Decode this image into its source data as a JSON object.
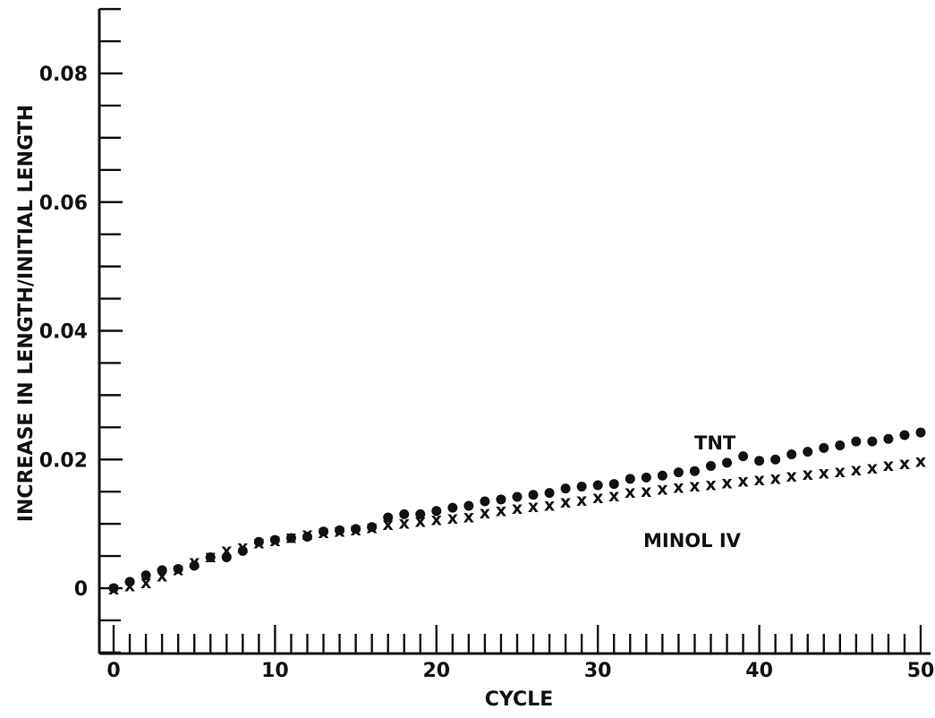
{
  "chart_data": {
    "type": "scatter",
    "title": "",
    "xlabel": "CYCLE",
    "ylabel": "INCREASE IN LENGTH/INITIAL LENGTH",
    "xlim": [
      0,
      50
    ],
    "ylim": [
      -0.01,
      0.09
    ],
    "x_ticks": [
      "0",
      "10",
      "20",
      "30",
      "40",
      "50"
    ],
    "y_ticks": [
      "0",
      "0.02",
      "0.04",
      "0.06",
      "0.08"
    ],
    "grid": false,
    "series": [
      {
        "name": "TNT",
        "marker": "dot",
        "x": [
          0,
          1,
          2,
          3,
          4,
          5,
          6,
          7,
          8,
          9,
          10,
          11,
          12,
          13,
          14,
          15,
          16,
          17,
          18,
          19,
          20,
          21,
          22,
          23,
          24,
          25,
          26,
          27,
          28,
          29,
          30,
          31,
          32,
          33,
          34,
          35,
          36,
          37,
          38,
          39,
          40,
          41,
          42,
          43,
          44,
          45,
          46,
          47,
          48,
          49,
          50
        ],
        "values": [
          0.0,
          0.001,
          0.002,
          0.0028,
          0.003,
          0.0035,
          0.0048,
          0.0048,
          0.0058,
          0.0072,
          0.0075,
          0.0078,
          0.008,
          0.0088,
          0.009,
          0.0092,
          0.0095,
          0.011,
          0.0115,
          0.0115,
          0.012,
          0.0125,
          0.0128,
          0.0135,
          0.0138,
          0.0142,
          0.0145,
          0.0148,
          0.0155,
          0.0158,
          0.016,
          0.0162,
          0.017,
          0.0172,
          0.0175,
          0.018,
          0.0182,
          0.019,
          0.0195,
          0.0205,
          0.0198,
          0.02,
          0.0208,
          0.0212,
          0.0218,
          0.0222,
          0.0228,
          0.0228,
          0.0232,
          0.0238,
          0.0242
        ]
      },
      {
        "name": "MINOL IV",
        "marker": "x",
        "x": [
          0,
          1,
          2,
          3,
          4,
          5,
          6,
          7,
          8,
          9,
          10,
          11,
          12,
          13,
          14,
          15,
          16,
          17,
          18,
          19,
          20,
          21,
          22,
          23,
          24,
          25,
          26,
          27,
          28,
          29,
          30,
          31,
          32,
          33,
          34,
          35,
          36,
          37,
          38,
          39,
          40,
          41,
          42,
          43,
          44,
          45,
          46,
          47,
          48,
          49,
          50
        ],
        "values": [
          0.0,
          0.0005,
          0.001,
          0.002,
          0.003,
          0.0042,
          0.005,
          0.006,
          0.0065,
          0.0072,
          0.0075,
          0.008,
          0.0085,
          0.0088,
          0.009,
          0.0092,
          0.0095,
          0.01,
          0.0102,
          0.0105,
          0.0108,
          0.011,
          0.0112,
          0.0118,
          0.0122,
          0.0125,
          0.0128,
          0.013,
          0.0135,
          0.0138,
          0.0142,
          0.0145,
          0.015,
          0.0152,
          0.0155,
          0.0158,
          0.016,
          0.0162,
          0.0165,
          0.0168,
          0.017,
          0.0172,
          0.0175,
          0.0178,
          0.018,
          0.0182,
          0.0185,
          0.0188,
          0.0192,
          0.0195,
          0.0198
        ]
      }
    ],
    "series_label_text": [
      "TNT",
      "MINOL IV"
    ]
  }
}
